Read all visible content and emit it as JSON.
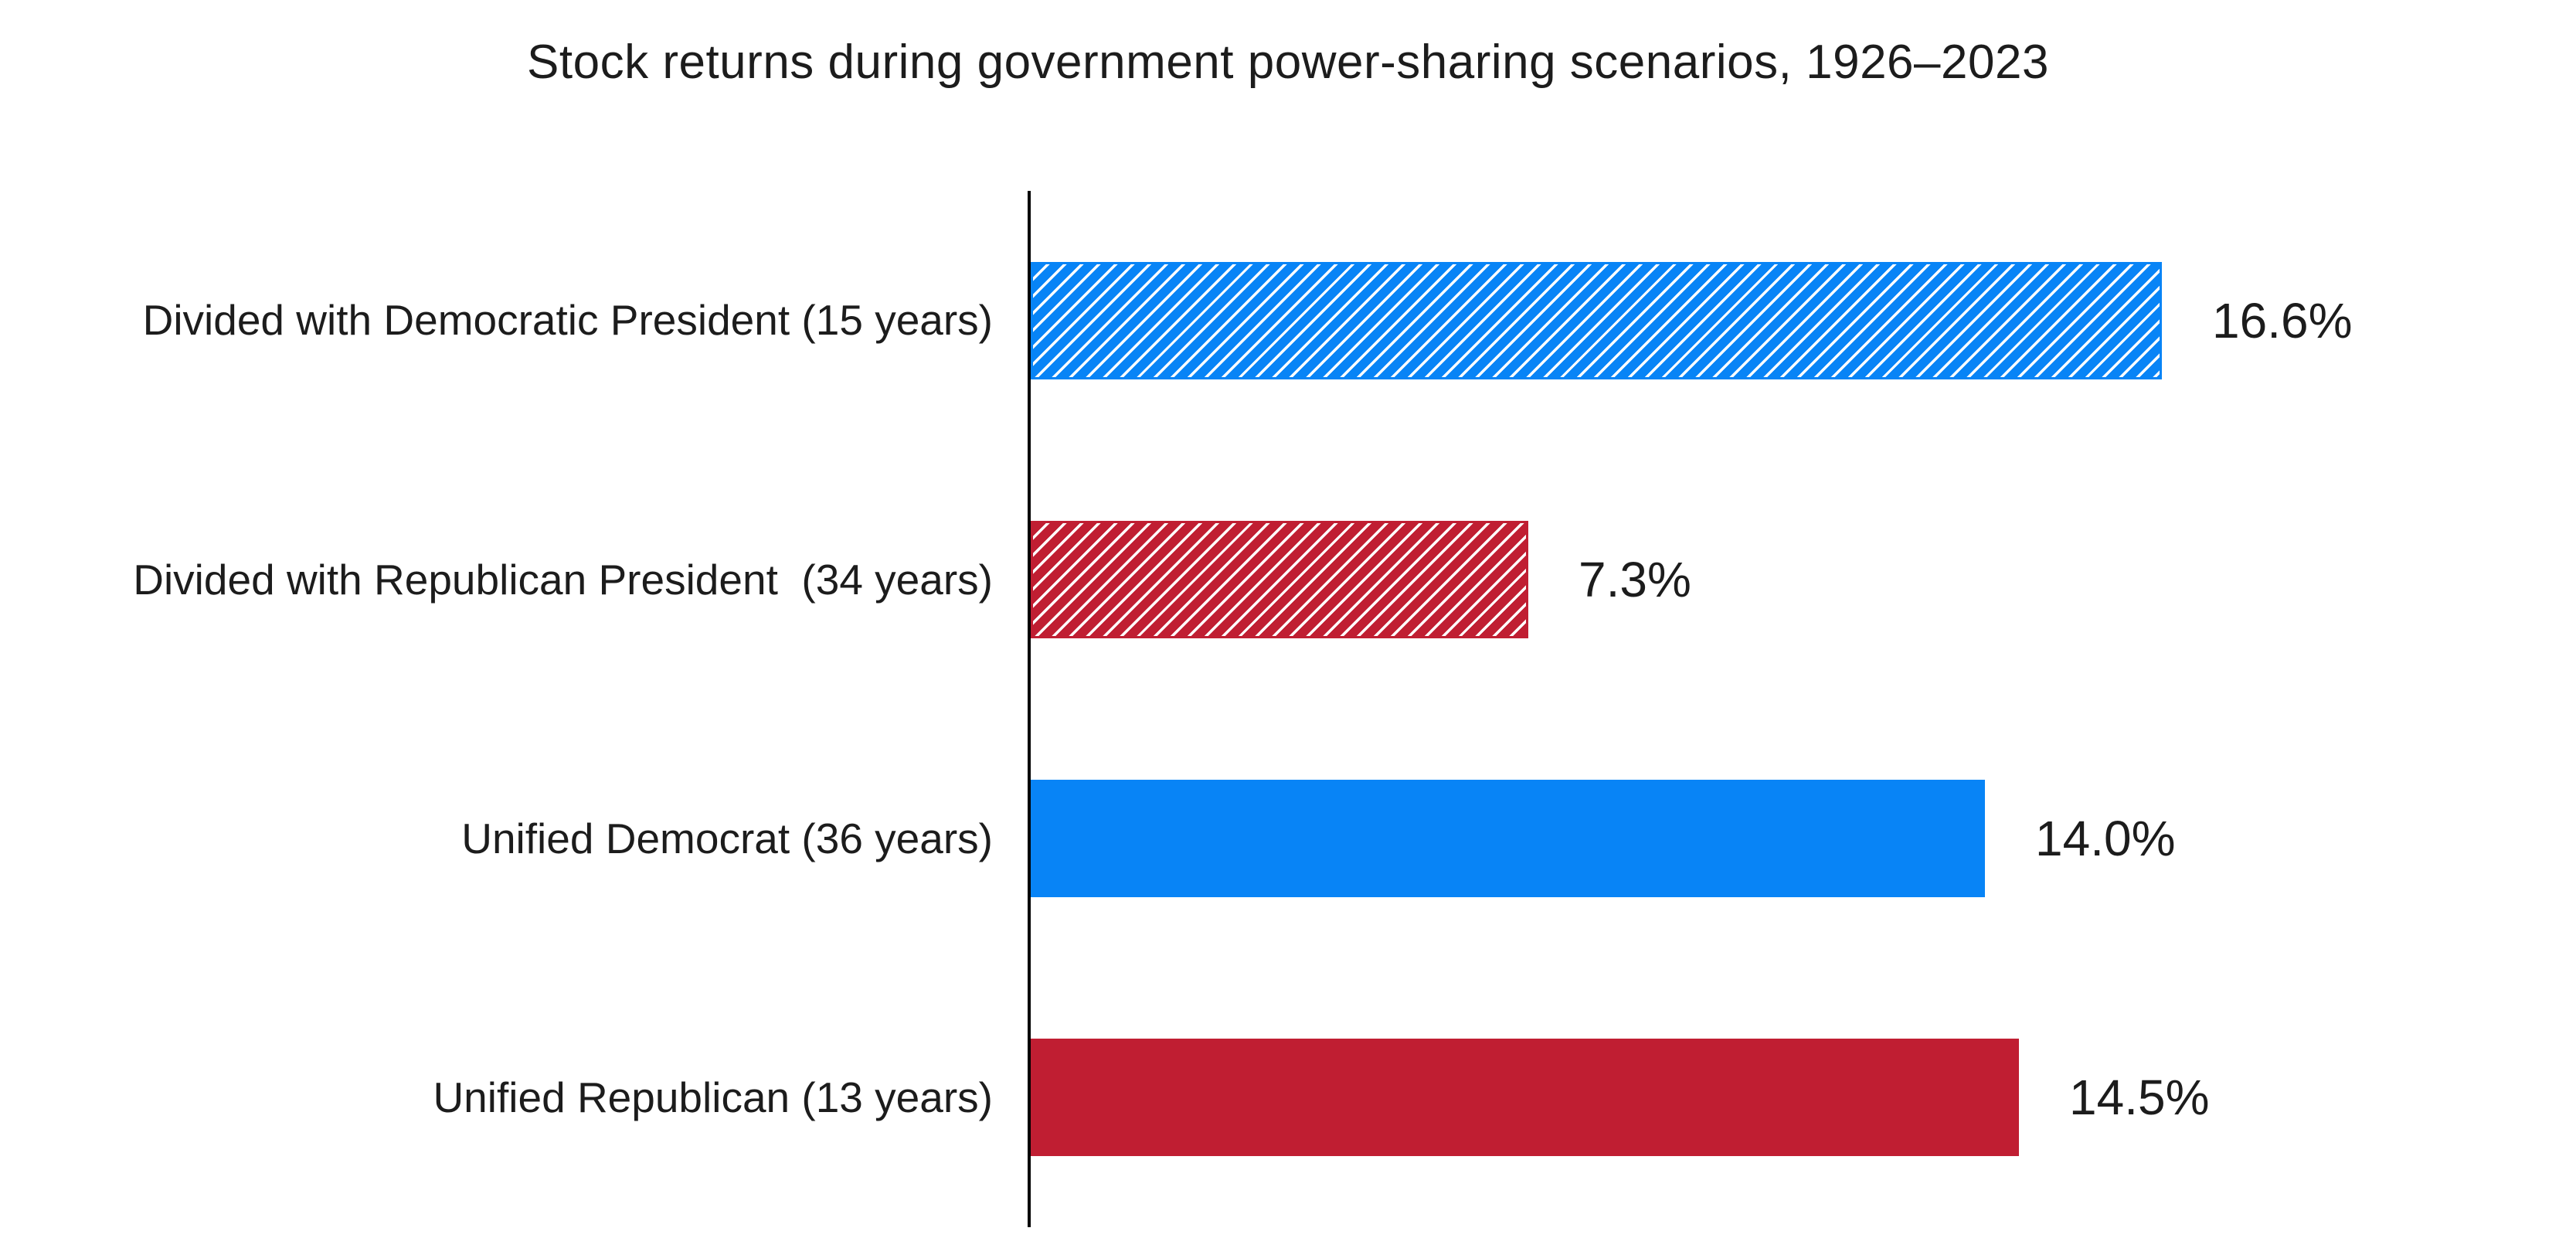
{
  "chart_data": {
    "type": "bar",
    "orientation": "horizontal",
    "title": "Stock returns during government power-sharing scenarios, 1926–2023",
    "categories": [
      "Divided with Democratic President (15 years)",
      "Divided with Republican President  (34 years)",
      "Unified Democrat (36 years)",
      "Unified Republican (13 years)"
    ],
    "values": [
      16.6,
      7.3,
      14.0,
      14.5
    ],
    "value_labels": [
      "16.6%",
      "7.3%",
      "14.0%",
      "14.5%"
    ],
    "unit": "%",
    "bar_styles": [
      {
        "color": "#0884f6",
        "pattern": "diagonal-hatch"
      },
      {
        "color": "#c01e32",
        "pattern": "diagonal-hatch"
      },
      {
        "color": "#0884f6",
        "pattern": "solid"
      },
      {
        "color": "#c01e32",
        "pattern": "solid"
      }
    ],
    "colors": {
      "democrat_blue": "#0884f6",
      "republican_red": "#c01e32",
      "axis": "#000000",
      "text": "#1c1c1c",
      "background": "#ffffff"
    },
    "layout": {
      "grid": false,
      "legend": false,
      "axis_tick_labels_visible": false,
      "value_labels_position": "right-of-bar-end"
    }
  }
}
